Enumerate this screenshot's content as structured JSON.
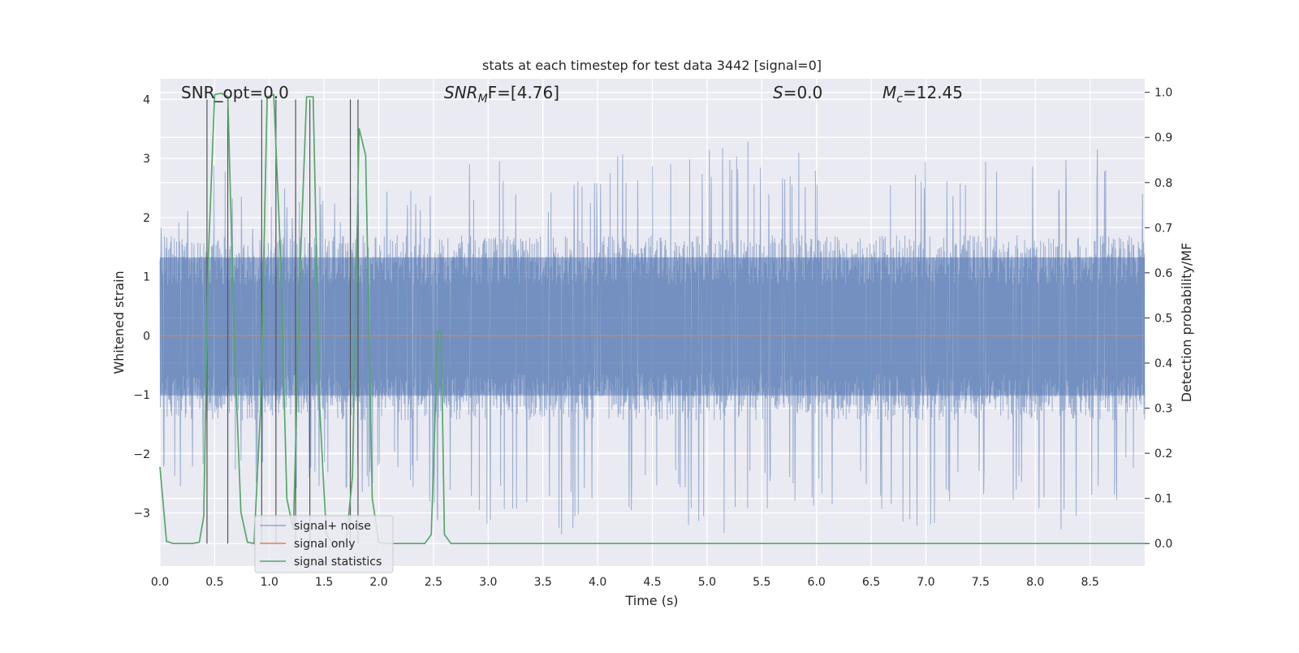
{
  "chart_data": {
    "type": "line",
    "title": "stats at each timestep for test data 3442 [signal=0]",
    "xlabel": "Time (s)",
    "ylabel_left": "Whitened strain",
    "ylabel_right": "Detection probability/MF",
    "xlim": [
      0.0,
      9.0
    ],
    "ylim_left": [
      -3.9,
      4.35
    ],
    "ylim_right": [
      -0.05,
      1.03
    ],
    "x_ticks": [
      0.0,
      0.5,
      1.0,
      1.5,
      2.0,
      2.5,
      3.0,
      3.5,
      4.0,
      4.5,
      5.0,
      5.5,
      6.0,
      6.5,
      7.0,
      7.5,
      8.0,
      8.5
    ],
    "x_tick_labels": [
      "0.0",
      "0.5",
      "1.0",
      "1.5",
      "2.0",
      "2.5",
      "3.0",
      "3.5",
      "4.0",
      "4.5",
      "5.0",
      "5.5",
      "6.0",
      "6.5",
      "7.0",
      "7.5",
      "8.0",
      "8.5"
    ],
    "y_left_ticks": [
      -3,
      -2,
      -1,
      0,
      1,
      2,
      3,
      4
    ],
    "y_left_tick_labels": [
      "−3",
      "−2",
      "−1",
      "0",
      "1",
      "2",
      "3",
      "4"
    ],
    "y_right_ticks": [
      0.0,
      0.1,
      0.2,
      0.3,
      0.4,
      0.5,
      0.6,
      0.7,
      0.8,
      0.9,
      1.0
    ],
    "y_right_tick_labels": [
      "0.0",
      "0.1",
      "0.2",
      "0.3",
      "0.4",
      "0.5",
      "0.6",
      "0.7",
      "0.8",
      "0.9",
      "1.0"
    ],
    "grid": true,
    "legend_position": "bottom-left",
    "annotations": {
      "snr_opt": "SNR_opt=0.0",
      "snr_mf_main": "SNR",
      "snr_mf_sub": "M",
      "snr_mf_rest": "F=[4.76]",
      "s_main": "S",
      "s_rest": "=0.0",
      "mc_main": "M",
      "mc_sub": "c",
      "mc_rest": "=12.45"
    },
    "series": [
      {
        "name": "signal+ noise",
        "color": "#4c72b0",
        "style": "dense noise band",
        "typical_range": [
          -1.3,
          1.7
        ],
        "peak_values": [
          [
            0.05,
            2.0
          ],
          [
            0.15,
            2.4
          ],
          [
            0.25,
            2.5
          ],
          [
            0.35,
            2.7
          ],
          [
            0.5,
            2.9
          ],
          [
            0.8,
            2.4
          ],
          [
            1.35,
            2.6
          ],
          [
            1.75,
            2.5
          ],
          [
            2.4,
            2.8
          ],
          [
            3.05,
            3.0
          ],
          [
            3.3,
            2.8
          ],
          [
            3.6,
            2.7
          ],
          [
            3.9,
            2.9
          ],
          [
            4.35,
            3.1
          ],
          [
            4.45,
            3.2
          ],
          [
            5.05,
            3.2
          ],
          [
            5.2,
            3.4
          ],
          [
            5.6,
            3.0
          ],
          [
            5.9,
            3.2
          ],
          [
            6.3,
            3.1
          ],
          [
            6.75,
            3.0
          ],
          [
            7.15,
            3.1
          ],
          [
            7.35,
            3.3
          ],
          [
            7.6,
            3.1
          ],
          [
            8.1,
            3.0
          ],
          [
            8.45,
            3.0
          ],
          [
            8.65,
            3.4
          ],
          [
            8.85,
            2.9
          ]
        ],
        "trough_values": [
          [
            0.05,
            -2.6
          ],
          [
            0.3,
            -2.6
          ],
          [
            0.55,
            -2.7
          ],
          [
            1.25,
            -2.6
          ],
          [
            1.45,
            -2.6
          ],
          [
            1.9,
            -2.7
          ],
          [
            2.3,
            -2.6
          ],
          [
            2.6,
            -3.3
          ],
          [
            3.15,
            -3.2
          ],
          [
            3.5,
            -3.2
          ],
          [
            3.7,
            -3.5
          ],
          [
            4.05,
            -3.0
          ],
          [
            4.6,
            -3.0
          ],
          [
            4.9,
            -3.3
          ],
          [
            5.1,
            -3.5
          ],
          [
            5.35,
            -3.0
          ],
          [
            5.8,
            -3.0
          ],
          [
            6.05,
            -3.0
          ],
          [
            6.4,
            -3.0
          ],
          [
            7.0,
            -3.3
          ],
          [
            7.5,
            -3.0
          ],
          [
            7.9,
            -3.0
          ],
          [
            8.3,
            -3.3
          ],
          [
            8.7,
            -3.0
          ],
          [
            8.95,
            -2.7
          ]
        ]
      },
      {
        "name": "signal only",
        "color": "#dd8452",
        "x": [
          0.0,
          9.0
        ],
        "y": [
          0.0,
          0.0
        ]
      },
      {
        "name": "signal statistics",
        "color": "#55a868",
        "axis": "right",
        "x": [
          0.0,
          0.06,
          0.12,
          0.18,
          0.24,
          0.3,
          0.36,
          0.4,
          0.44,
          0.5,
          0.56,
          0.62,
          0.68,
          0.74,
          0.8,
          0.86,
          0.92,
          0.98,
          1.04,
          1.1,
          1.16,
          1.22,
          1.28,
          1.34,
          1.4,
          1.46,
          1.52,
          1.58,
          1.64,
          1.7,
          1.76,
          1.82,
          1.88,
          1.94,
          2.0,
          2.06,
          2.12,
          2.18,
          2.24,
          2.3,
          2.36,
          2.42,
          2.48,
          2.54,
          2.57,
          2.6,
          2.66,
          2.72,
          2.78,
          2.84,
          9.0
        ],
        "y": [
          0.17,
          0.005,
          0.0,
          0.0,
          0.0,
          0.0,
          0.003,
          0.06,
          0.62,
          0.995,
          0.998,
          0.99,
          0.45,
          0.07,
          0.003,
          0.0,
          0.3,
          0.99,
          0.995,
          0.65,
          0.1,
          0.03,
          0.6,
          0.99,
          0.99,
          0.3,
          0.02,
          0.0,
          0.0,
          0.0,
          0.15,
          0.92,
          0.86,
          0.1,
          0.003,
          0.0,
          0.0,
          0.0,
          0.0,
          0.0,
          0.0,
          0.0,
          0.02,
          0.47,
          0.47,
          0.02,
          0.0,
          0.0,
          0.0,
          0.0,
          0.0
        ]
      }
    ],
    "vertical_markers_x": [
      0.43,
      0.62,
      0.93,
      1.06,
      1.24,
      1.37,
      1.74,
      1.81
    ]
  }
}
